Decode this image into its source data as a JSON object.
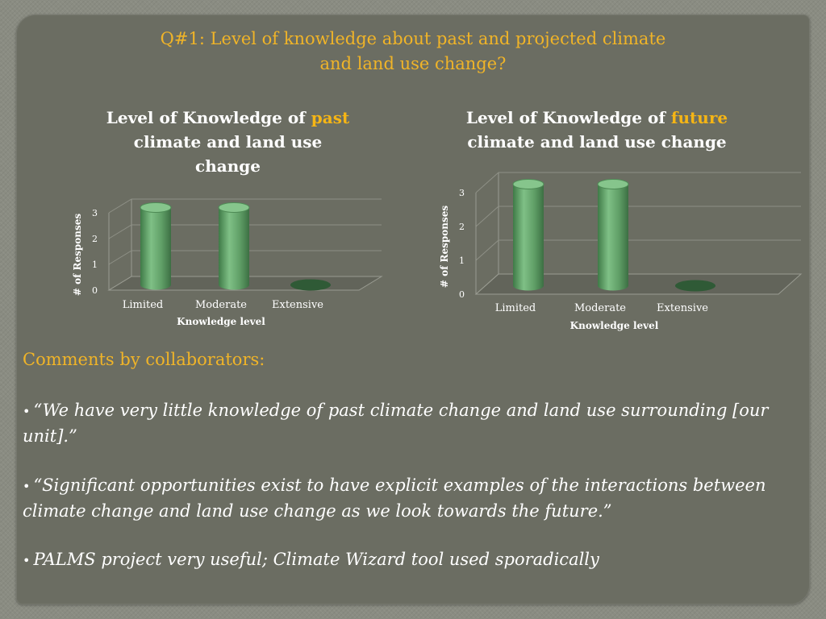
{
  "slide": {
    "title_line1": "Q#1:  Level of knowledge about past and projected climate",
    "title_line2": "and land use change?"
  },
  "colors": {
    "title": "#f0b428",
    "highlight": "#f5b515",
    "bar": "#5f9e66",
    "background": "#6b6d62"
  },
  "charts": {
    "past": {
      "title_pre": "Level of Knowledge of ",
      "title_highlight": "past",
      "title_line2": "climate and land use",
      "title_line3": "change"
    },
    "future": {
      "title_pre": "Level of Knowledge of ",
      "title_highlight": "future",
      "title_line2": "climate and land use change"
    }
  },
  "chart_data": [
    {
      "type": "bar",
      "title": "Level of Knowledge of past climate and land use change",
      "categories": [
        "Limited",
        "Moderate",
        "Extensive"
      ],
      "values": [
        3,
        3,
        0
      ],
      "xlabel": "Knowledge level",
      "ylabel": "# of Responses",
      "ylim": [
        0,
        3
      ],
      "yticks": [
        "0",
        "1",
        "2",
        "3"
      ],
      "grid": true
    },
    {
      "type": "bar",
      "title": "Level of Knowledge of future climate and land use change",
      "categories": [
        "Limited",
        "Moderate",
        "Extensive"
      ],
      "values": [
        3,
        3,
        0
      ],
      "xlabel": "Knowledge level",
      "ylabel": "# of Responses",
      "ylim": [
        0,
        3
      ],
      "yticks": [
        "0",
        "1",
        "2",
        "3"
      ],
      "grid": true
    }
  ],
  "comments": {
    "heading": "Comments by collaborators:",
    "bullet": "•",
    "items": [
      "“We have very little knowledge of past climate change and land use surrounding [our unit].”",
      "“Significant opportunities exist to have explicit examples of the interactions between climate change and land use change as we look towards the future.”",
      "PALMS project very useful; Climate Wizard tool used sporadically"
    ]
  }
}
